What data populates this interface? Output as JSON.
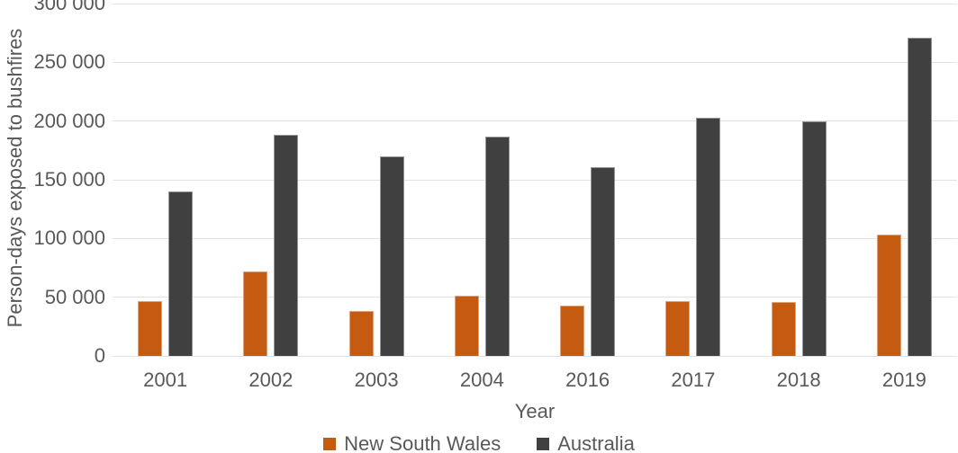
{
  "chart_data": {
    "type": "bar",
    "title": "",
    "xlabel": "Year",
    "ylabel": "Person-days exposed to bushfires",
    "categories": [
      "2001",
      "2002",
      "2003",
      "2004",
      "2016",
      "2017",
      "2018",
      "2019"
    ],
    "series": [
      {
        "name": "New South Wales",
        "color": "#C55A11",
        "values": [
          47000,
          72000,
          38000,
          51000,
          43000,
          47000,
          46000,
          103000
        ]
      },
      {
        "name": "Australia",
        "color": "#404040",
        "values": [
          140000,
          188000,
          170000,
          187000,
          161000,
          203000,
          200000,
          271000
        ]
      }
    ],
    "ylim": [
      0,
      300000
    ],
    "ytick_interval": 50000,
    "ytick_labels": [
      "0",
      "50 000",
      "100 000",
      "150 000",
      "200 000",
      "250 000",
      "300 000"
    ],
    "grid": true,
    "legend_position": "bottom"
  },
  "style": {
    "text_color": "#595959",
    "gridline_color": "#e2e2e2",
    "background_color": "#ffffff"
  }
}
